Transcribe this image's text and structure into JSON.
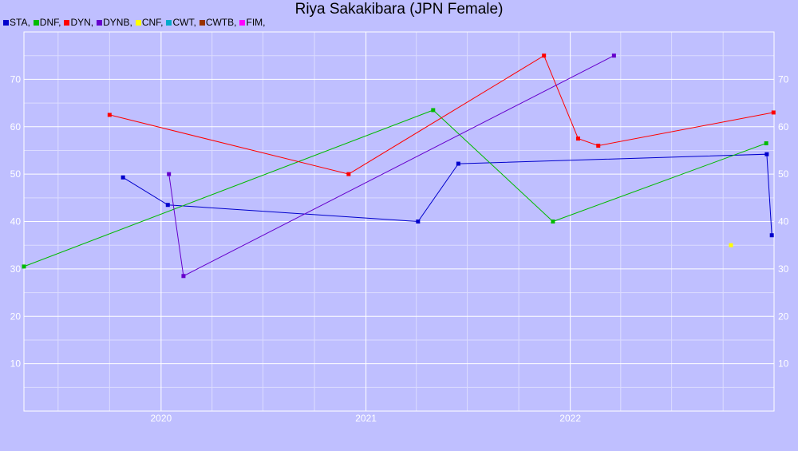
{
  "chart_data": {
    "type": "line",
    "title": "Riya Sakakibara (JPN Female)",
    "xlabel": "",
    "ylabel": "",
    "x_ticks": [
      "2020",
      "2021",
      "2022"
    ],
    "y_ticks": [
      10,
      20,
      30,
      40,
      50,
      60,
      70
    ],
    "ylim": [
      0,
      80
    ],
    "xlim": [
      "2019-05-01",
      "2022-12-31"
    ],
    "grid": true,
    "legend_position": "top-left",
    "series": [
      {
        "name": "STA",
        "color": "#0000cc",
        "points": [
          [
            "2019-10-25",
            49.3
          ],
          [
            "2020-01-13",
            43.5
          ],
          [
            "2021-04-04",
            40.0
          ],
          [
            "2021-06-15",
            52.2
          ],
          [
            "2022-12-18",
            54.2
          ],
          [
            "2022-12-27",
            37.1
          ]
        ]
      },
      {
        "name": "DNF",
        "color": "#00bb00",
        "points": [
          [
            "2019-05-01",
            30.5
          ],
          [
            "2021-05-01",
            63.5
          ],
          [
            "2021-12-01",
            40.0
          ],
          [
            "2022-12-17",
            56.5
          ]
        ]
      },
      {
        "name": "DYN",
        "color": "#ff0000",
        "points": [
          [
            "2019-10-01",
            62.5
          ],
          [
            "2020-12-01",
            50.0
          ],
          [
            "2021-11-15",
            75.0
          ],
          [
            "2022-01-15",
            57.5
          ],
          [
            "2022-02-20",
            56.0
          ],
          [
            "2022-12-30",
            63.0
          ]
        ]
      },
      {
        "name": "DYNB",
        "color": "#6600cc",
        "points": [
          [
            "2020-01-15",
            50.0
          ],
          [
            "2020-02-10",
            28.5
          ],
          [
            "2022-03-20",
            75.0
          ]
        ]
      },
      {
        "name": "CNF",
        "color": "#ffff00",
        "points": [
          [
            "2022-10-15",
            35.0
          ]
        ]
      },
      {
        "name": "CWT",
        "color": "#00aacc",
        "points": []
      },
      {
        "name": "CWTB",
        "color": "#993300",
        "points": []
      },
      {
        "name": "FIM",
        "color": "#ff00ff",
        "points": []
      }
    ]
  }
}
